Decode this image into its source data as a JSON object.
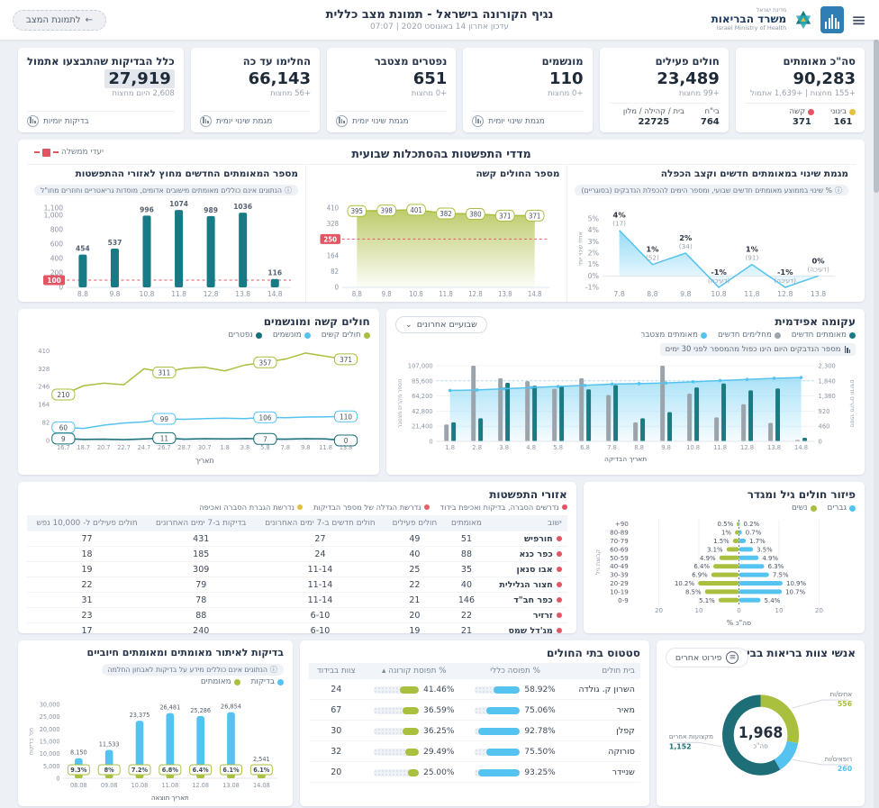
{
  "header": {
    "menu_icon": "≡",
    "logo": {
      "state": "מדינת ישראל",
      "ministry_he": "משרד הבריאות",
      "ministry_en": "Israel Ministry of Health"
    },
    "title": "נגיף הקורונה בישראל - תמונת מצב כללית",
    "subtitle": "עדכון אחרון 14 באוגוסט 2020 | 07:07",
    "back_button": "לתמונת המצב",
    "back_arrow": "←"
  },
  "kpis": [
    {
      "title": "סה\"כ מאומתים",
      "value": "90,283",
      "sub": "+155 מחצות | +1,639 אתמול",
      "stats": [
        {
          "label": "בינוני",
          "value": "161",
          "color": "#e3c23f"
        },
        {
          "label": "קשה",
          "value": "371",
          "color": "#e25563"
        }
      ]
    },
    {
      "title": "חולים פעילים",
      "value": "23,489",
      "sub": "+99 מחצות",
      "stats": [
        {
          "label": "בי\"ח",
          "value": "764",
          "color": ""
        },
        {
          "label": "בית / קהילה / מלון",
          "value": "22725",
          "color": ""
        }
      ]
    },
    {
      "title": "מונשמים",
      "value": "110",
      "sub": "+0 מחצות",
      "link": "מגמת שינוי יומית"
    },
    {
      "title": "נפטרים מצטבר",
      "value": "651",
      "sub": "+0 מחצות",
      "link": "מגמת שינוי יומית"
    },
    {
      "title": "החלימו עד כה",
      "value": "66,143",
      "sub": "+56 מחצות",
      "link": "מגמת שינוי יומית"
    },
    {
      "title": "כלל הבדיקות שהתבצעו אתמול",
      "value": "27,919",
      "sub": "2,608 היום מחצות",
      "link": "בדיקות יומיות",
      "highlight": true
    }
  ],
  "spread_section": {
    "title": "מדדי התפשטות בהסתכלות שבועית",
    "target_legend": "יעדי ממשלה"
  },
  "chart_data": [
    {
      "type": "bar",
      "title": "מספר המאומתים החדשים מחוץ לאזורי ההתפשטות",
      "subtitle": "הנתונים אינם כוללים מאומתים מישובים אדומים, מוסדות גריאטריים וחוזרים מחו\"ל",
      "categories": [
        "8.8",
        "9.8",
        "10.8",
        "11.8",
        "12.8",
        "13.8",
        "14.8"
      ],
      "values": [
        454,
        537,
        996,
        1074,
        989,
        1036,
        116
      ],
      "value_labels": [
        "454",
        "537",
        "996",
        "1074",
        "989",
        "1036",
        "116"
      ],
      "yticks": [
        0,
        100,
        200,
        400,
        600,
        800,
        1000,
        1100
      ],
      "ytick_labels": [
        "0",
        "100",
        "200",
        "400",
        "600",
        "800",
        "1,000",
        "1,100"
      ],
      "target": 100,
      "ylim": [
        0,
        1100
      ],
      "color": "#177b85"
    },
    {
      "type": "area",
      "title": "מספר החולים קשה",
      "categories": [
        "8.8",
        "9.8",
        "10.8",
        "11.8",
        "12.8",
        "13.8",
        "14.8"
      ],
      "values": [
        395,
        398,
        401,
        382,
        380,
        371,
        371
      ],
      "yticks": [
        0,
        82,
        164,
        250,
        328,
        410
      ],
      "target": 250,
      "ylim": [
        0,
        410
      ],
      "color": "#a9bf3e"
    },
    {
      "type": "line",
      "title": "מגמת שינוי במאומתים חדשים וקצב הכפלה",
      "subtitle": "% שינוי בממוצע מאומתים חדשים שבועי, ומספר הימים להכפלת הנדבקים (בסוגריים)",
      "categories": [
        "7.8",
        "8.8",
        "9.8",
        "10.8",
        "11.8",
        "12.8",
        "13.8"
      ],
      "values": [
        4,
        1,
        2,
        -1,
        1,
        -1,
        0
      ],
      "point_labels": [
        "4%",
        "1%",
        "2%",
        "-1%",
        "1%",
        "-1%",
        "0%"
      ],
      "point_sublabels": [
        "(17)",
        "(52)",
        "(34)",
        "(דעיכה)",
        "(91)",
        "(דעיכה)",
        "(דעיכה)"
      ],
      "ylabel": "אחוז שינוי יומי",
      "ylim": [
        -1,
        5
      ],
      "color": "#55c3ef"
    },
    {
      "type": "multi_line",
      "title": "חולים קשה ומונשמים",
      "xlabel": "תאריך",
      "categories": [
        "16.7",
        "18.7",
        "20.7",
        "22.7",
        "24.7",
        "26.7",
        "28.7",
        "30.7",
        "1.8",
        "3.8",
        "5.8",
        "7.8",
        "9.8",
        "11.8",
        "13.8"
      ],
      "yticks": [
        0,
        82,
        164,
        246,
        328,
        410
      ],
      "ylim": [
        0,
        420
      ],
      "label_indices": [
        0,
        5,
        10,
        14
      ],
      "series": [
        {
          "name": "חולים קשים",
          "color": "#a9bf3e",
          "values": [
            210,
            250,
            262,
            255,
            328,
            311,
            330,
            335,
            318,
            345,
            357,
            372,
            400,
            385,
            371
          ]
        },
        {
          "name": "מונשמים",
          "color": "#55c3ef",
          "values": [
            60,
            55,
            70,
            80,
            85,
            99,
            97,
            100,
            102,
            100,
            106,
            104,
            107,
            108,
            110
          ]
        },
        {
          "name": "נפטרים",
          "color": "#176f78",
          "values": [
            9,
            5,
            6,
            4,
            7,
            11,
            6,
            8,
            7,
            9,
            7,
            6,
            8,
            7,
            0
          ]
        }
      ]
    },
    {
      "type": "combo",
      "title": "עקומה אפידמית",
      "dropdown": "שבועיים אחרונים",
      "note": "מספר הנדבקים היום הינו כפול מהמספר לפני 30 ימים",
      "xlabel": "תאריך הבדיקה",
      "ylabel_left": "מספר מקרים מצטבר",
      "ylabel_right": "מספר מקרים חדשים",
      "categories": [
        "1.8",
        "2.8",
        "3.8",
        "4.8",
        "5.8",
        "6.8",
        "7.8",
        "8.8",
        "9.8",
        "10.8",
        "11.8",
        "12.8",
        "13.8",
        "14.8"
      ],
      "yticks_left": [
        0,
        21400,
        42800,
        64200,
        85600,
        107000
      ],
      "yticks_right": [
        0,
        460,
        920,
        1380,
        1840,
        2300
      ],
      "series": [
        {
          "name": "מאומתים חדשים",
          "kind": "bar",
          "color": "#1b7b82",
          "values": [
            580,
            700,
            1780,
            1690,
            1670,
            1580,
            1710,
            700,
            890,
            1640,
            1760,
            1550,
            1610,
            110
          ]
        },
        {
          "name": "מחלימים חדשים",
          "kind": "bar",
          "color": "#9ba3ab",
          "values": [
            515,
            2300,
            1920,
            1830,
            1600,
            1920,
            1410,
            580,
            2300,
            1450,
            730,
            1130,
            560,
            45
          ]
        },
        {
          "name": "מאומתים מצטבר",
          "kind": "line",
          "color": "#55c3ef",
          "values": [
            72000,
            72700,
            74400,
            76100,
            77700,
            79300,
            81000,
            81700,
            82600,
            84300,
            86000,
            87600,
            89200,
            90283
          ]
        }
      ]
    },
    {
      "type": "pyramid",
      "title": "פיזור חולים גיל ומגדר",
      "xlabel": "% סה\"כ",
      "ylabel": "קבוצת גיל",
      "categories": [
        "+90",
        "80-89",
        "70-79",
        "60-69",
        "50-59",
        "40-49",
        "30-39",
        "20-29",
        "10-19",
        "0-9"
      ],
      "xticks": [
        "20",
        "10",
        "0",
        "10",
        "20"
      ],
      "series": [
        {
          "name": "גברים",
          "color": "#55c3ef",
          "values": [
            0.2,
            0.7,
            1.7,
            3.5,
            4.9,
            6.3,
            7.5,
            10.9,
            10.7,
            5.4
          ],
          "labels": [
            "0.2%",
            "0.7%",
            "1.7%",
            "3.5%",
            "4.9%",
            "6.3%",
            "7.5%",
            "10.9%",
            "10.7%",
            "5.4%"
          ]
        },
        {
          "name": "נשים",
          "color": "#a9bf3e",
          "values": [
            0.5,
            1,
            1.5,
            3.1,
            4.9,
            6.4,
            6.9,
            10.2,
            8.5,
            5.1
          ],
          "labels": [
            "0.5%",
            "1%",
            "1.5%",
            "3.1%",
            "4.9%",
            "6.4%",
            "6.9%",
            "10.2%",
            "8.5%",
            "5.1%"
          ]
        }
      ]
    },
    {
      "type": "bar",
      "title": "בדיקות לאיתור מאומתים ומאומתים חיוביים",
      "subtitle": "הנתונים אינם כוללים מידע על בדיקות לאבחון החלמה",
      "xlabel": "תאריך תוצאה",
      "ylabel": "מס' בדיקות",
      "legend": [
        {
          "name": "בדיקות",
          "color": "#55c3ef"
        },
        {
          "name": "מאומתים",
          "color": "#a9bf3e"
        }
      ],
      "categories": [
        "08.08",
        "09.08",
        "10.08",
        "11.08",
        "12.08",
        "13.08",
        "14.08"
      ],
      "values": [
        8150,
        11533,
        23375,
        26481,
        25286,
        26854,
        2541
      ],
      "value_labels": [
        "8,150",
        "11,533",
        "23,375",
        "26,481",
        "25,286",
        "26,854",
        "2,541"
      ],
      "pct_labels": [
        "9.3%",
        "8%",
        "7.2%",
        "6.8%",
        "6.4%",
        "6.1%",
        "6.1%"
      ],
      "yticks": [
        0,
        5000,
        10000,
        15000,
        20000,
        25000,
        30000
      ],
      "ytick_labels": [
        "0",
        "5,000",
        "10,000",
        "15,000",
        "20,000",
        "25,000",
        "30,000"
      ],
      "ylim": [
        0,
        30000
      ]
    },
    {
      "type": "donut",
      "title": "אנשי צוות בריאות בבידוד",
      "button": "פירוט אחרים",
      "center_value": "1,968",
      "center_label": "סה\"כ",
      "slices": [
        {
          "name": "אחים/ות",
          "value": 556,
          "label": "556",
          "color": "#a9bf3e"
        },
        {
          "name": "רופאים/ות",
          "value": 260,
          "label": "260",
          "color": "#55c3ef"
        },
        {
          "name": "מקצועות אחרים",
          "value": 1152,
          "label": "1,152",
          "color": "#1d6e77"
        }
      ]
    }
  ],
  "areas": {
    "title": "אזורי התפשטות",
    "legend": [
      {
        "label": "נדרשים הסברה, בדיקות ואכיפת בידוד",
        "color": "#e25563"
      },
      {
        "label": "נדרשת הגדלה של מספר הבדיקות",
        "color": "#e2636b"
      },
      {
        "label": "נדרשת הגברת הסברה ואכיפה",
        "color": "#e3c23f"
      }
    ],
    "columns": [
      "ישוב",
      "מאומתים",
      "חולים פעילים",
      "חולים חדשים ב-7 ימים האחרונים",
      "בדיקות ב-7 ימים האחרונים",
      "חולים פעילים ל- 10,000 נפש"
    ],
    "rows": [
      {
        "name": "חורפיש",
        "dot": "#e25563",
        "values": [
          "51",
          "49",
          "27",
          "431",
          "77"
        ]
      },
      {
        "name": "כפר כנא",
        "dot": "#e25563",
        "values": [
          "88",
          "40",
          "24",
          "185",
          "18"
        ]
      },
      {
        "name": "אבו סנאן",
        "dot": "#e25563",
        "values": [
          "35",
          "25",
          "11-14",
          "309",
          "19"
        ]
      },
      {
        "name": "חצור הגלילית",
        "dot": "#e25563",
        "values": [
          "40",
          "22",
          "11-14",
          "79",
          "22"
        ]
      },
      {
        "name": "כפר חב\"ד",
        "dot": "#e25563",
        "values": [
          "146",
          "21",
          "11-14",
          "78",
          "31"
        ]
      },
      {
        "name": "זרזיר",
        "dot": "#e25563",
        "values": [
          "22",
          "20",
          "6-10",
          "88",
          "23"
        ]
      },
      {
        "name": "מג'דל שמס",
        "dot": "#e25563",
        "values": [
          "21",
          "19",
          "6-10",
          "240",
          "17"
        ]
      }
    ]
  },
  "hospitals": {
    "title": "סטטוס בתי החולים",
    "columns": [
      "בית חולים",
      "% תפוסה כללי",
      "% תפוסת קורונה ▴",
      "צוות בבידוד"
    ],
    "bar_colors": {
      "general": "#55c3ef",
      "corona": "#a9bf3e"
    },
    "rows": [
      {
        "name": "השרון ק. גולדה",
        "general": "58.92",
        "corona": "41.46",
        "staff": "24"
      },
      {
        "name": "מאיר",
        "general": "75.06",
        "corona": "36.59",
        "staff": "67"
      },
      {
        "name": "קפלן",
        "general": "92.78",
        "corona": "36.25",
        "staff": "30"
      },
      {
        "name": "סורוקה",
        "general": "75.50",
        "corona": "29.49",
        "staff": "32"
      },
      {
        "name": "שניידר",
        "general": "93.25",
        "corona": "25.00",
        "staff": "20"
      }
    ]
  }
}
